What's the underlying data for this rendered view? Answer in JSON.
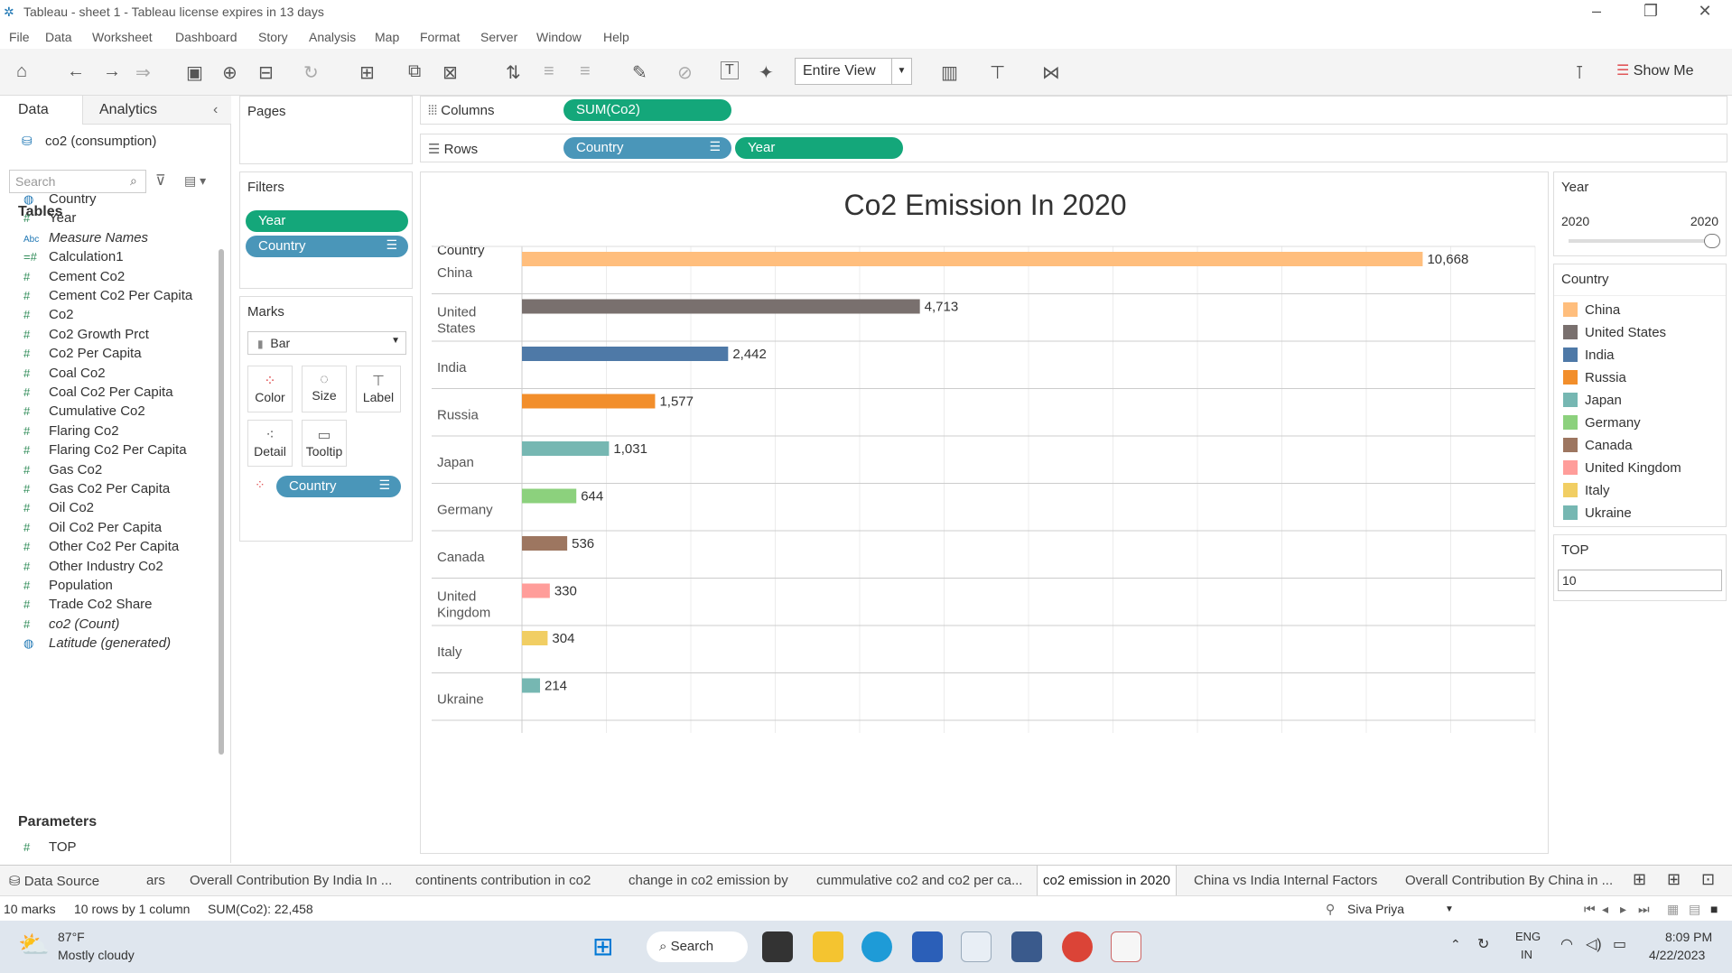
{
  "window": {
    "title": "Tableau - sheet 1 - Tableau license expires in 13 days"
  },
  "menu": [
    "File",
    "Data",
    "Worksheet",
    "Dashboard",
    "Story",
    "Analysis",
    "Map",
    "Format",
    "Server",
    "Window",
    "Help"
  ],
  "toolbar": {
    "view_select": "Entire View",
    "show_me": "Show Me"
  },
  "data_pane": {
    "tabs": [
      "Data",
      "Analytics"
    ],
    "source": "co2 (consumption)",
    "search_placeholder": "Search",
    "tables_heading": "Tables",
    "fields": [
      {
        "icon": "globe-icon",
        "name": "Country"
      },
      {
        "icon": "hash-icon",
        "name": "Year"
      },
      {
        "icon": "abc-icon",
        "name": "Measure Names",
        "italic": true
      },
      {
        "icon": "calc-hash-icon",
        "name": "Calculation1"
      },
      {
        "icon": "hash-icon",
        "name": "Cement Co2"
      },
      {
        "icon": "hash-icon",
        "name": "Cement Co2 Per Capita"
      },
      {
        "icon": "hash-icon",
        "name": "Co2"
      },
      {
        "icon": "hash-icon",
        "name": "Co2 Growth Prct"
      },
      {
        "icon": "hash-icon",
        "name": "Co2 Per Capita"
      },
      {
        "icon": "hash-icon",
        "name": "Coal Co2"
      },
      {
        "icon": "hash-icon",
        "name": "Coal Co2 Per Capita"
      },
      {
        "icon": "hash-icon",
        "name": "Cumulative Co2"
      },
      {
        "icon": "hash-icon",
        "name": "Flaring Co2"
      },
      {
        "icon": "hash-icon",
        "name": "Flaring Co2 Per Capita"
      },
      {
        "icon": "hash-icon",
        "name": "Gas Co2"
      },
      {
        "icon": "hash-icon",
        "name": "Gas Co2 Per Capita"
      },
      {
        "icon": "hash-icon",
        "name": "Oil Co2"
      },
      {
        "icon": "hash-icon",
        "name": "Oil Co2 Per Capita"
      },
      {
        "icon": "hash-icon",
        "name": "Other Co2 Per Capita"
      },
      {
        "icon": "hash-icon",
        "name": "Other Industry Co2"
      },
      {
        "icon": "hash-icon",
        "name": "Population"
      },
      {
        "icon": "hash-icon",
        "name": "Trade Co2 Share"
      },
      {
        "icon": "hash-icon",
        "name": "co2 (Count)",
        "italic": true
      },
      {
        "icon": "globe-icon",
        "name": "Latitude (generated)",
        "italic": true
      }
    ],
    "parameters_heading": "Parameters",
    "parameters": [
      {
        "icon": "hash-icon",
        "name": "TOP"
      }
    ]
  },
  "pages": {
    "title": "Pages"
  },
  "filters": {
    "title": "Filters",
    "pills": [
      "Year",
      "Country"
    ]
  },
  "marks": {
    "title": "Marks",
    "type": "Bar",
    "buttons": [
      "Color",
      "Size",
      "Label",
      "Detail",
      "Tooltip"
    ],
    "pill": "Country"
  },
  "shelves": {
    "columns_label": "Columns",
    "columns": [
      "SUM(Co2)"
    ],
    "rows_label": "Rows",
    "rows": [
      "Country",
      "Year"
    ]
  },
  "chart_data": {
    "type": "bar",
    "title": "Co2 Emission In 2020",
    "row_header": "Country",
    "categories": [
      "China",
      "United States",
      "India",
      "Russia",
      "Japan",
      "Germany",
      "Canada",
      "United Kingdom",
      "Italy",
      "Ukraine"
    ],
    "category_lines": [
      [
        "China"
      ],
      [
        "United",
        "States"
      ],
      [
        "India"
      ],
      [
        "Russia"
      ],
      [
        "Japan"
      ],
      [
        "Germany"
      ],
      [
        "Canada"
      ],
      [
        "United",
        "Kingdom"
      ],
      [
        "Italy"
      ],
      [
        "Ukraine"
      ]
    ],
    "values": [
      10668,
      4713,
      2442,
      1577,
      1031,
      644,
      536,
      330,
      304,
      214
    ],
    "value_labels": [
      "10,668",
      "4,713",
      "2,442",
      "1,577",
      "1,031",
      "644",
      "536",
      "330",
      "304",
      "214"
    ],
    "colors": [
      "#ffbe7d",
      "#79706e",
      "#4e79a7",
      "#f28e2b",
      "#76b7b2",
      "#8cd17d",
      "#9d7660",
      "#ff9d9a",
      "#f1ce63",
      "#76b7b2"
    ],
    "xlim": [
      0,
      12000
    ],
    "orientation": "horizontal"
  },
  "year_filter": {
    "title": "Year",
    "min": "2020",
    "max": "2020"
  },
  "country_legend": {
    "title": "Country",
    "items": [
      "China",
      "United States",
      "India",
      "Russia",
      "Japan",
      "Germany",
      "Canada",
      "United Kingdom",
      "Italy",
      "Ukraine"
    ],
    "colors": [
      "#ffbe7d",
      "#79706e",
      "#4e79a7",
      "#f28e2b",
      "#76b7b2",
      "#8cd17d",
      "#9d7660",
      "#ff9d9a",
      "#f1ce63",
      "#76b7b2"
    ]
  },
  "top_param": {
    "title": "TOP",
    "value": "10"
  },
  "sheet_tabs": [
    "Data Source",
    "ars",
    "Overall Contribution By India In ...",
    "continents contribution in co2",
    "change in co2 emission by",
    "cummulative co2 and co2 per ca...",
    "co2 emission in 2020",
    "China vs India Internal Factors",
    "Overall Contribution By China in ..."
  ],
  "active_sheet": "co2 emission in 2020",
  "status": {
    "marks": "10 marks",
    "rows": "10 rows by 1 column",
    "sum": "SUM(Co2): 22,458",
    "user": "Siva Priya"
  },
  "taskbar": {
    "weather_temp": "87°F",
    "weather_text": "Mostly cloudy",
    "search": "Search",
    "lang1": "ENG",
    "lang2": "IN",
    "time": "8:09 PM",
    "date": "4/22/2023"
  }
}
